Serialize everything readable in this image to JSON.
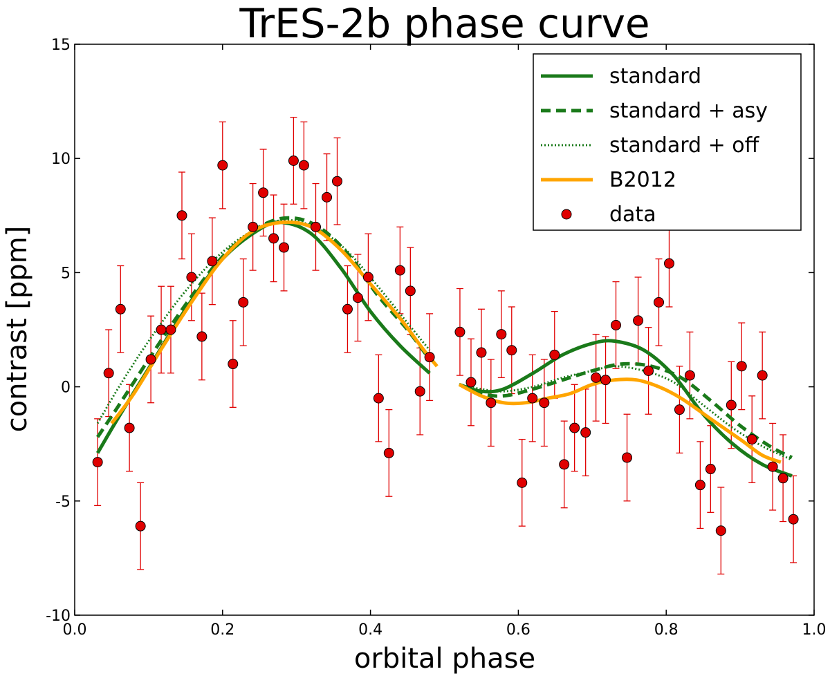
{
  "chart_data": {
    "type": "scatter",
    "title": "TrES-2b phase curve",
    "xlabel": "orbital phase",
    "ylabel": "contrast [ppm]",
    "xlim": [
      0.0,
      1.0
    ],
    "ylim": [
      -10,
      15
    ],
    "xticks": [
      0.0,
      0.2,
      0.4,
      0.6,
      0.8,
      1.0
    ],
    "xtick_labels": [
      "0.0",
      "0.2",
      "0.4",
      "0.6",
      "0.8",
      "1.0"
    ],
    "yticks": [
      -10,
      -5,
      0,
      5,
      10,
      15
    ],
    "ytick_labels": [
      "-10",
      "-5",
      "0",
      "5",
      "10",
      "15"
    ],
    "grid": false,
    "legend_position": "top-right",
    "legend": [
      {
        "label": "standard",
        "color": "#1a7a1a",
        "style": "solid"
      },
      {
        "label": "standard + asy",
        "color": "#1a7a1a",
        "style": "dashed"
      },
      {
        "label": "standard + off",
        "color": "#1a7a1a",
        "style": "dotted"
      },
      {
        "label": "B2012",
        "color": "#ffa500",
        "style": "solid"
      },
      {
        "label": "data",
        "color": "#e00000",
        "style": "marker"
      }
    ],
    "data_error": 1.9,
    "data": [
      [
        0.031,
        -3.3
      ],
      [
        0.046,
        0.6
      ],
      [
        0.062,
        3.4
      ],
      [
        0.074,
        -1.8
      ],
      [
        0.089,
        -6.1
      ],
      [
        0.103,
        1.2
      ],
      [
        0.117,
        2.5
      ],
      [
        0.13,
        2.5
      ],
      [
        0.145,
        7.5
      ],
      [
        0.158,
        4.8
      ],
      [
        0.172,
        2.2
      ],
      [
        0.186,
        5.5
      ],
      [
        0.2,
        9.7
      ],
      [
        0.214,
        1.0
      ],
      [
        0.228,
        3.7
      ],
      [
        0.241,
        7.0
      ],
      [
        0.255,
        8.5
      ],
      [
        0.269,
        6.5
      ],
      [
        0.283,
        6.1
      ],
      [
        0.296,
        9.9
      ],
      [
        0.31,
        9.7
      ],
      [
        0.326,
        7.0
      ],
      [
        0.341,
        8.3
      ],
      [
        0.355,
        9.0
      ],
      [
        0.369,
        3.4
      ],
      [
        0.383,
        3.9
      ],
      [
        0.397,
        4.8
      ],
      [
        0.411,
        -0.5
      ],
      [
        0.425,
        -2.9
      ],
      [
        0.44,
        5.1
      ],
      [
        0.454,
        4.2
      ],
      [
        0.467,
        -0.2
      ],
      [
        0.48,
        1.3
      ],
      [
        0.521,
        2.4
      ],
      [
        0.536,
        0.2
      ],
      [
        0.55,
        1.5
      ],
      [
        0.563,
        -0.7
      ],
      [
        0.577,
        2.3
      ],
      [
        0.591,
        1.6
      ],
      [
        0.605,
        -4.2
      ],
      [
        0.619,
        -0.5
      ],
      [
        0.635,
        -0.7
      ],
      [
        0.649,
        1.4
      ],
      [
        0.662,
        -3.4
      ],
      [
        0.676,
        -1.8
      ],
      [
        0.691,
        -2.0
      ],
      [
        0.705,
        0.4
      ],
      [
        0.718,
        0.3
      ],
      [
        0.732,
        2.7
      ],
      [
        0.747,
        -3.1
      ],
      [
        0.762,
        2.9
      ],
      [
        0.776,
        0.7
      ],
      [
        0.79,
        3.7
      ],
      [
        0.804,
        5.4
      ],
      [
        0.818,
        -1.0
      ],
      [
        0.832,
        0.5
      ],
      [
        0.846,
        -4.3
      ],
      [
        0.86,
        -3.6
      ],
      [
        0.874,
        -6.3
      ],
      [
        0.888,
        -0.8
      ],
      [
        0.902,
        0.9
      ],
      [
        0.916,
        -2.3
      ],
      [
        0.93,
        0.5
      ],
      [
        0.944,
        -3.5
      ],
      [
        0.958,
        -4.0
      ],
      [
        0.972,
        -5.8
      ]
    ],
    "series": [
      {
        "name": "standard",
        "segments": [
          [
            [
              0.031,
              -2.9
            ],
            [
              0.06,
              -1.3
            ],
            [
              0.1,
              0.8
            ],
            [
              0.15,
              3.4
            ],
            [
              0.2,
              5.6
            ],
            [
              0.25,
              6.9
            ],
            [
              0.28,
              7.2
            ],
            [
              0.32,
              6.7
            ],
            [
              0.36,
              5.2
            ],
            [
              0.4,
              3.3
            ],
            [
              0.44,
              1.8
            ],
            [
              0.48,
              0.6
            ]
          ],
          [
            [
              0.52,
              0.1
            ],
            [
              0.55,
              -0.2
            ],
            [
              0.58,
              -0.1
            ],
            [
              0.62,
              0.6
            ],
            [
              0.66,
              1.4
            ],
            [
              0.7,
              1.9
            ],
            [
              0.73,
              2.0
            ],
            [
              0.77,
              1.6
            ],
            [
              0.81,
              0.5
            ],
            [
              0.85,
              -1.2
            ],
            [
              0.89,
              -2.5
            ],
            [
              0.93,
              -3.4
            ],
            [
              0.97,
              -3.9
            ]
          ]
        ]
      },
      {
        "name": "standard + asy",
        "segments": [
          [
            [
              0.031,
              -2.2
            ],
            [
              0.06,
              -0.8
            ],
            [
              0.1,
              1.2
            ],
            [
              0.15,
              3.6
            ],
            [
              0.2,
              5.7
            ],
            [
              0.25,
              7.0
            ],
            [
              0.29,
              7.4
            ],
            [
              0.33,
              7.0
            ],
            [
              0.37,
              5.8
            ],
            [
              0.41,
              4.0
            ],
            [
              0.45,
              2.5
            ],
            [
              0.48,
              1.2
            ]
          ],
          [
            [
              0.52,
              0.1
            ],
            [
              0.55,
              -0.3
            ],
            [
              0.58,
              -0.4
            ],
            [
              0.62,
              -0.1
            ],
            [
              0.66,
              0.3
            ],
            [
              0.7,
              0.7
            ],
            [
              0.74,
              1.0
            ],
            [
              0.78,
              0.9
            ],
            [
              0.82,
              0.4
            ],
            [
              0.86,
              -0.6
            ],
            [
              0.9,
              -1.7
            ],
            [
              0.94,
              -2.6
            ],
            [
              0.97,
              -3.1
            ]
          ]
        ]
      },
      {
        "name": "standard + off",
        "segments": [
          [
            [
              0.031,
              -1.6
            ],
            [
              0.06,
              0.0
            ],
            [
              0.1,
              2.0
            ],
            [
              0.15,
              4.2
            ],
            [
              0.2,
              5.9
            ],
            [
              0.25,
              7.0
            ],
            [
              0.29,
              7.3
            ],
            [
              0.33,
              6.9
            ],
            [
              0.37,
              5.9
            ],
            [
              0.41,
              4.4
            ],
            [
              0.45,
              2.8
            ],
            [
              0.48,
              1.6
            ]
          ],
          [
            [
              0.52,
              0.1
            ],
            [
              0.55,
              -0.1
            ],
            [
              0.58,
              -0.2
            ],
            [
              0.62,
              0.0
            ],
            [
              0.66,
              0.4
            ],
            [
              0.7,
              0.7
            ],
            [
              0.73,
              0.9
            ],
            [
              0.77,
              0.7
            ],
            [
              0.81,
              0.2
            ],
            [
              0.85,
              -0.8
            ],
            [
              0.89,
              -1.8
            ],
            [
              0.93,
              -2.6
            ],
            [
              0.97,
              -3.2
            ]
          ]
        ]
      },
      {
        "name": "B2012",
        "segments": [
          [
            [
              0.05,
              -1.6
            ],
            [
              0.08,
              -0.3
            ],
            [
              0.12,
              1.8
            ],
            [
              0.16,
              3.8
            ],
            [
              0.2,
              5.6
            ],
            [
              0.24,
              6.8
            ],
            [
              0.28,
              7.2
            ],
            [
              0.32,
              7.0
            ],
            [
              0.36,
              6.0
            ],
            [
              0.4,
              4.5
            ],
            [
              0.44,
              3.0
            ],
            [
              0.47,
              1.7
            ],
            [
              0.49,
              0.9
            ]
          ],
          [
            [
              0.52,
              0.1
            ],
            [
              0.55,
              -0.4
            ],
            [
              0.58,
              -0.7
            ],
            [
              0.61,
              -0.7
            ],
            [
              0.64,
              -0.5
            ],
            [
              0.67,
              -0.3
            ],
            [
              0.7,
              0.1
            ],
            [
              0.73,
              0.3
            ],
            [
              0.76,
              0.3
            ],
            [
              0.79,
              0.0
            ],
            [
              0.82,
              -0.5
            ],
            [
              0.86,
              -1.4
            ],
            [
              0.9,
              -2.3
            ],
            [
              0.93,
              -3.0
            ],
            [
              0.955,
              -3.3
            ]
          ]
        ]
      }
    ]
  }
}
